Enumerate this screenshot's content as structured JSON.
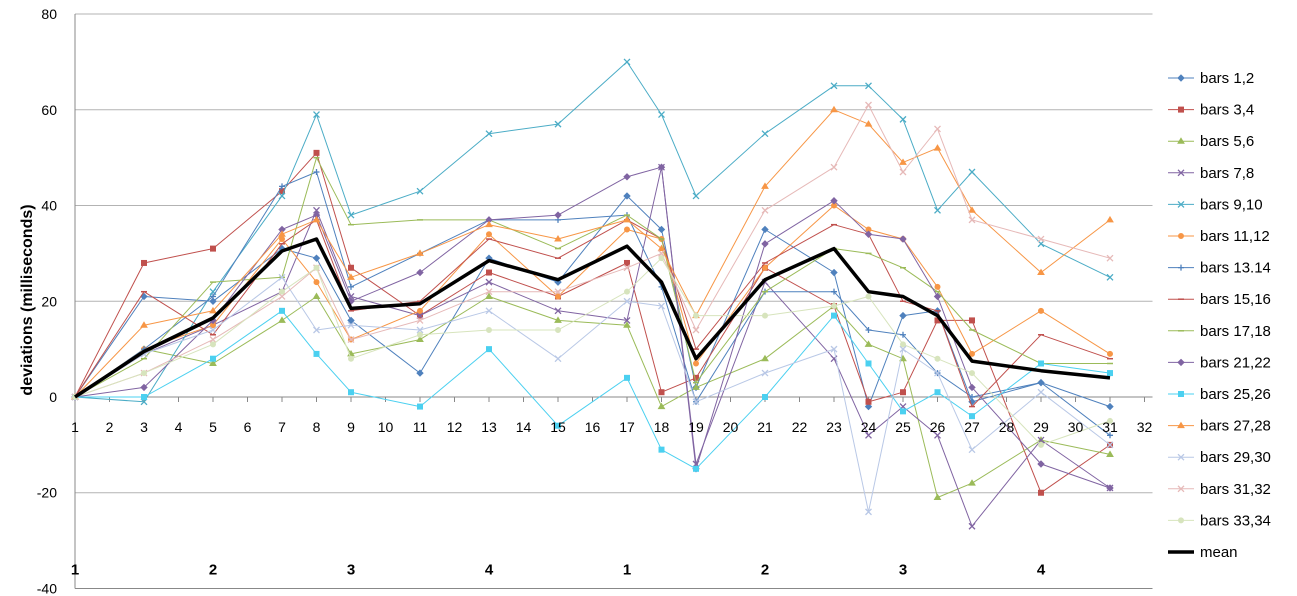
{
  "chart_data": {
    "type": "line",
    "title": "",
    "xlabel": "",
    "ylabel": "deviations (milliseconds)",
    "x_ticks": [
      1,
      2,
      3,
      4,
      5,
      6,
      7,
      8,
      9,
      10,
      11,
      12,
      13,
      14,
      15,
      16,
      17,
      18,
      19,
      20,
      21,
      22,
      23,
      24,
      25,
      26,
      27,
      28,
      29,
      30,
      31,
      32
    ],
    "ylim": [
      -40,
      80
    ],
    "y_ticks": [
      -40,
      -20,
      0,
      20,
      40,
      60,
      80
    ],
    "beat_labels": [
      {
        "x": 1,
        "label": "1"
      },
      {
        "x": 5,
        "label": "2"
      },
      {
        "x": 9,
        "label": "3"
      },
      {
        "x": 13,
        "label": "4"
      },
      {
        "x": 17,
        "label": "1"
      },
      {
        "x": 21,
        "label": "2"
      },
      {
        "x": 25,
        "label": "3"
      },
      {
        "x": 29,
        "label": "4"
      }
    ],
    "grid": "horizontal",
    "legend_position": "right",
    "x": [
      1,
      3,
      5,
      7,
      8,
      9,
      11,
      13,
      15,
      17,
      18,
      19,
      21,
      23,
      24,
      25,
      26,
      27,
      29,
      31
    ],
    "series": [
      {
        "name": "bars 1,2",
        "color": "#4f81bd",
        "marker": "diamond",
        "values": [
          0,
          21,
          20,
          31,
          29,
          16,
          5,
          29,
          24,
          42,
          35,
          2,
          35,
          26,
          -2,
          17,
          18,
          -1,
          3,
          -2
        ]
      },
      {
        "name": "bars 3,4",
        "color": "#c0504d",
        "marker": "square",
        "values": [
          0,
          28,
          31,
          43,
          51,
          27,
          17,
          26,
          21,
          28,
          1,
          4,
          27,
          19,
          -1,
          1,
          16,
          16,
          -20,
          -10
        ]
      },
      {
        "name": "bars 5,6",
        "color": "#9bbb59",
        "marker": "triangle",
        "values": [
          0,
          10,
          7,
          16,
          21,
          9,
          12,
          21,
          16,
          15,
          -2,
          2,
          8,
          19,
          11,
          8,
          -21,
          -18,
          -9,
          -12
        ]
      },
      {
        "name": "bars 7,8",
        "color": "#8064a2",
        "marker": "x",
        "values": [
          0,
          9,
          15,
          22,
          39,
          21,
          17,
          24,
          18,
          16,
          48,
          -14,
          24,
          8,
          -8,
          -2,
          -8,
          -27,
          -9,
          -19
        ]
      },
      {
        "name": "bars 9,10",
        "color": "#4bacc6",
        "marker": "x",
        "values": [
          0,
          -1,
          22,
          42,
          59,
          38,
          43,
          55,
          57,
          70,
          59,
          42,
          55,
          65,
          65,
          58,
          39,
          47,
          32,
          25
        ]
      },
      {
        "name": "bars 11,12",
        "color": "#f79646",
        "marker": "circle",
        "values": [
          0,
          10,
          15,
          33,
          24,
          12,
          18,
          34,
          21,
          35,
          33,
          7,
          27,
          40,
          35,
          33,
          23,
          9,
          18,
          9
        ]
      },
      {
        "name": "bars 13.14",
        "color": "#4f81bd",
        "marker": "plus",
        "values": [
          0,
          10,
          21,
          44,
          47,
          23,
          30,
          37,
          37,
          38,
          23,
          -1,
          22,
          22,
          14,
          13,
          5,
          0,
          3,
          -8
        ]
      },
      {
        "name": "bars 15,16",
        "color": "#c0504d",
        "marker": "dash",
        "values": [
          0,
          22,
          13,
          32,
          37,
          18,
          20,
          33,
          29,
          37,
          33,
          10,
          28,
          36,
          34,
          20,
          18,
          -2,
          13,
          8
        ]
      },
      {
        "name": "bars 17,18",
        "color": "#9bbb59",
        "marker": "dash",
        "values": [
          0,
          8,
          24,
          25,
          50,
          36,
          37,
          37,
          31,
          38,
          33,
          3,
          22,
          31,
          30,
          27,
          22,
          14,
          7,
          7
        ]
      },
      {
        "name": "bars 21,22",
        "color": "#8064a2",
        "marker": "diamond",
        "values": [
          0,
          2,
          16,
          35,
          38,
          20,
          26,
          37,
          38,
          46,
          48,
          -15,
          32,
          41,
          34,
          33,
          21,
          2,
          -14,
          -19
        ]
      },
      {
        "name": "bars 25,26",
        "color": "#4bd0f0",
        "marker": "square",
        "values": [
          0,
          0,
          8,
          18,
          9,
          1,
          -2,
          10,
          -6,
          4,
          -11,
          -15,
          0,
          17,
          7,
          -3,
          1,
          -4,
          7,
          5
        ]
      },
      {
        "name": "bars 27,28",
        "color": "#f79646",
        "marker": "triangle",
        "values": [
          0,
          15,
          18,
          34,
          37,
          25,
          30,
          36,
          33,
          37,
          31,
          17,
          44,
          60,
          57,
          49,
          52,
          39,
          26,
          37
        ]
      },
      {
        "name": "bars 29,30",
        "color": "#b9c8e6",
        "marker": "x",
        "values": [
          0,
          9,
          14,
          25,
          14,
          15,
          14,
          18,
          8,
          20,
          19,
          -1,
          5,
          10,
          -24,
          10,
          5,
          -11,
          1,
          -10
        ]
      },
      {
        "name": "bars 31,32",
        "color": "#e6b9b8",
        "marker": "x",
        "values": [
          0,
          5,
          12,
          21,
          27,
          12,
          16,
          22,
          22,
          27,
          30,
          14,
          39,
          48,
          61,
          47,
          56,
          37,
          33,
          29
        ]
      },
      {
        "name": "bars 33,34",
        "color": "#d7e4bd",
        "marker": "circle",
        "values": [
          0,
          5,
          11,
          22,
          27,
          8,
          13,
          14,
          14,
          22,
          29,
          17,
          17,
          19,
          21,
          11,
          8,
          5,
          -10,
          -5
        ]
      },
      {
        "name": "mean",
        "color": "#000000",
        "marker": "none",
        "bold": true,
        "values": [
          0,
          9.5,
          16.5,
          30.5,
          33,
          18.5,
          19.5,
          28.5,
          24.5,
          31.5,
          24,
          8,
          24.5,
          31,
          22,
          21,
          17,
          7.5,
          5.5,
          4
        ]
      }
    ]
  }
}
